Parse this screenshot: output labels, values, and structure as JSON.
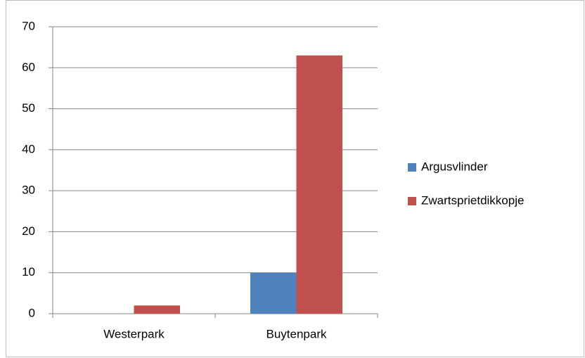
{
  "chart_data": {
    "type": "bar",
    "categories": [
      "Westerpark",
      "Buytenpark"
    ],
    "series": [
      {
        "name": "Argusvlinder",
        "color": "#4f81bd",
        "values": [
          0,
          10
        ]
      },
      {
        "name": "Zwartsprietdikkopje",
        "color": "#c0504d",
        "values": [
          2,
          63
        ]
      }
    ],
    "ylim": [
      0,
      70
    ],
    "yticks": [
      0,
      10,
      20,
      30,
      40,
      50,
      60,
      70
    ],
    "grid": true,
    "legend": "right"
  }
}
